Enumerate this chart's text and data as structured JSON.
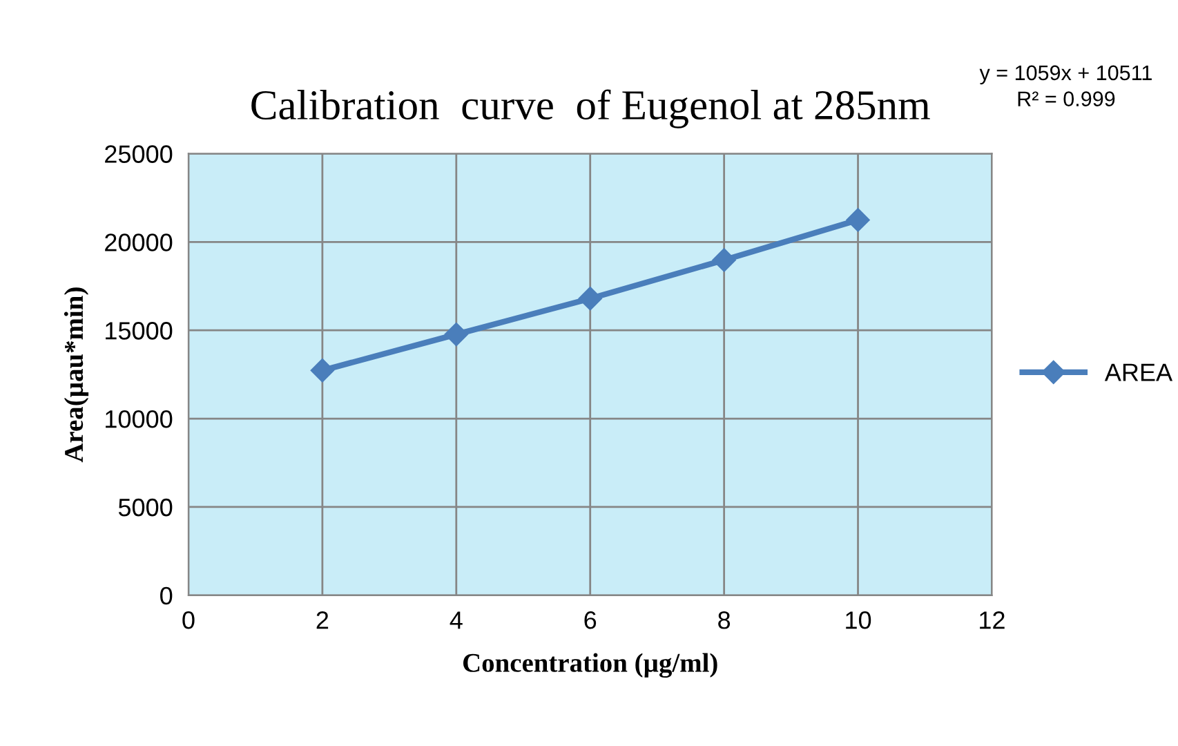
{
  "chart_data": {
    "type": "line",
    "title": "Calibration  curve  of Eugenol at 285nm",
    "xlabel": "Concentration (µg/ml)",
    "ylabel": "Area(µau*min)",
    "x": [
      2,
      4,
      6,
      8,
      10
    ],
    "series": [
      {
        "name": "AREA",
        "color": "#4a7ebb",
        "values": [
          12730,
          14770,
          16800,
          18980,
          21250
        ]
      }
    ],
    "xlim": [
      0,
      12
    ],
    "xticks": [
      0,
      2,
      4,
      6,
      8,
      10,
      12
    ],
    "ylim": [
      0,
      25000
    ],
    "yticks": [
      0,
      5000,
      10000,
      15000,
      20000,
      25000
    ],
    "grid": true,
    "legend": "right",
    "marker": "diamond",
    "line_style": "solid",
    "annotations": [
      "y = 1059x + 10511",
      "R² = 0.999"
    ]
  }
}
